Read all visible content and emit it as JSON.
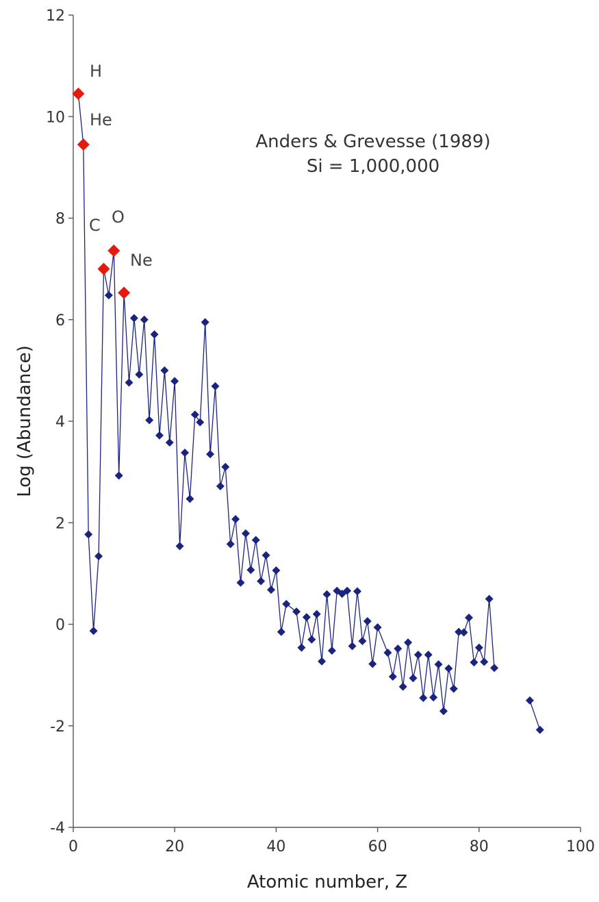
{
  "chart_data": {
    "type": "scatter",
    "title": "",
    "xlabel": "Atomic number, Z",
    "ylabel": "Log (Abundance)",
    "xlim": [
      0,
      100
    ],
    "ylim": [
      -4,
      12
    ],
    "x_ticks": [
      0,
      20,
      40,
      60,
      80,
      100
    ],
    "y_ticks": [
      -4,
      -2,
      0,
      2,
      4,
      6,
      8,
      10,
      12
    ],
    "grid": false,
    "legend": "none",
    "annotation_lines": [
      "Anders & Grevesse (1989)",
      "Si = 1,000,000"
    ],
    "series": [
      {
        "color": "#1a237e",
        "marker": "diamond",
        "line": true,
        "points": [
          [
            1,
            10.45
          ],
          [
            2,
            9.45
          ],
          [
            3,
            1.77
          ],
          [
            4,
            -0.13
          ],
          [
            5,
            1.34
          ],
          [
            6,
            7.0
          ],
          [
            7,
            6.48
          ],
          [
            8,
            7.36
          ],
          [
            9,
            2.93
          ],
          [
            10,
            6.53
          ],
          [
            11,
            4.76
          ],
          [
            12,
            6.03
          ],
          [
            13,
            4.92
          ],
          [
            14,
            6.0
          ],
          [
            15,
            4.02
          ],
          [
            16,
            5.71
          ],
          [
            17,
            3.72
          ],
          [
            18,
            5.0
          ],
          [
            19,
            3.58
          ],
          [
            20,
            4.79
          ],
          [
            21,
            1.54
          ],
          [
            22,
            3.38
          ],
          [
            23,
            2.47
          ],
          [
            24,
            4.13
          ],
          [
            25,
            3.98
          ],
          [
            26,
            5.95
          ],
          [
            27,
            3.35
          ],
          [
            28,
            4.69
          ],
          [
            29,
            2.72
          ],
          [
            30,
            3.1
          ],
          [
            31,
            1.58
          ],
          [
            32,
            2.07
          ],
          [
            33,
            0.82
          ],
          [
            34,
            1.79
          ],
          [
            35,
            1.07
          ],
          [
            36,
            1.66
          ],
          [
            37,
            0.85
          ],
          [
            38,
            1.36
          ],
          [
            39,
            0.68
          ],
          [
            40,
            1.06
          ],
          [
            41,
            -0.15
          ],
          [
            42,
            0.4
          ],
          [
            44,
            0.25
          ],
          [
            45,
            -0.46
          ],
          [
            46,
            0.14
          ],
          [
            47,
            -0.3
          ],
          [
            48,
            0.2
          ],
          [
            49,
            -0.73
          ],
          [
            50,
            0.59
          ],
          [
            51,
            -0.52
          ],
          [
            52,
            0.66
          ],
          [
            53,
            0.6
          ],
          [
            54,
            0.66
          ],
          [
            55,
            -0.43
          ],
          [
            56,
            0.65
          ],
          [
            57,
            -0.33
          ],
          [
            58,
            0.06
          ],
          [
            59,
            -0.78
          ],
          [
            60,
            -0.06
          ],
          [
            62,
            -0.56
          ],
          [
            63,
            -1.03
          ],
          [
            64,
            -0.48
          ],
          [
            65,
            -1.23
          ],
          [
            66,
            -0.36
          ],
          [
            67,
            -1.06
          ],
          [
            68,
            -0.6
          ],
          [
            69,
            -1.45
          ],
          [
            70,
            -0.6
          ],
          [
            71,
            -1.44
          ],
          [
            72,
            -0.79
          ],
          [
            73,
            -1.71
          ],
          [
            74,
            -0.87
          ],
          [
            75,
            -1.27
          ],
          [
            76,
            -0.15
          ],
          [
            77,
            -0.16
          ],
          [
            78,
            0.13
          ],
          [
            79,
            -0.75
          ],
          [
            80,
            -0.46
          ],
          [
            81,
            -0.74
          ],
          [
            82,
            0.5
          ],
          [
            83,
            -0.86
          ],
          [
            90,
            -1.5
          ],
          [
            92,
            -2.08
          ]
        ]
      }
    ],
    "highlighted_points": {
      "color": "#e8190c",
      "marker": "diamond",
      "points": [
        {
          "label": "H",
          "x": 1,
          "y": 10.45
        },
        {
          "label": "He",
          "x": 2,
          "y": 9.45
        },
        {
          "label": "C",
          "x": 6,
          "y": 7.0
        },
        {
          "label": "O",
          "x": 8,
          "y": 7.36
        },
        {
          "label": "Ne",
          "x": 10,
          "y": 6.53
        }
      ]
    }
  }
}
